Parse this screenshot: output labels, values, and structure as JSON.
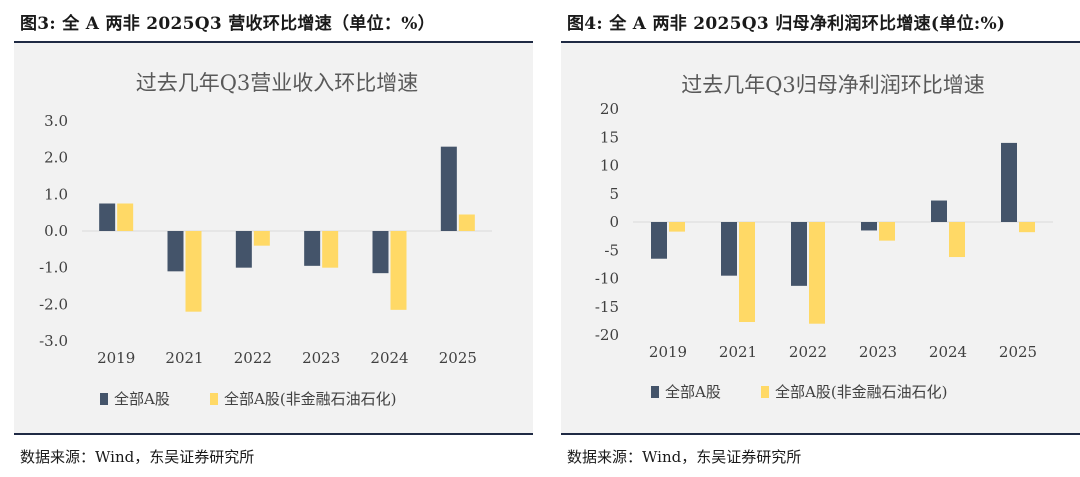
{
  "left": {
    "fig_title": "图3:  全 A 两非  2025Q3 营收环比增速（单位：%）",
    "source": "数据来源：Wind，东吴证券研究所",
    "chart_data": {
      "type": "bar",
      "title": "过去几年Q3营业收入环比增速",
      "categories": [
        "2019",
        "2021",
        "2022",
        "2023",
        "2024",
        "2025"
      ],
      "series": [
        {
          "name": "全部A股",
          "color": "#44546a",
          "values": [
            0.75,
            -1.1,
            -1.0,
            -0.95,
            -1.15,
            2.3
          ]
        },
        {
          "name": "全部A股(非金融石油石化)",
          "color": "#ffd966",
          "values": [
            0.75,
            -2.2,
            -0.4,
            -1.0,
            -2.15,
            0.45
          ]
        }
      ],
      "ylim": [
        -3.0,
        3.0
      ],
      "yticks": [
        3.0,
        2.0,
        1.0,
        0.0,
        -1.0,
        -2.0,
        -3.0
      ],
      "ytick_labels": [
        "3.0",
        "2.0",
        "1.0",
        "0.0",
        "-1.0",
        "-2.0",
        "-3.0"
      ],
      "legend_position": "bottom-left",
      "grid": false
    }
  },
  "right": {
    "fig_title": "图4:  全 A 两非  2025Q3 归母净利润环比增速(单位:%)",
    "source": "数据来源：Wind，东吴证券研究所",
    "chart_data": {
      "type": "bar",
      "title": "过去几年Q3归母净利润环比增速",
      "categories": [
        "2019",
        "2021",
        "2022",
        "2023",
        "2024",
        "2025"
      ],
      "series": [
        {
          "name": "全部A股",
          "color": "#44546a",
          "values": [
            -6.5,
            -9.5,
            -11.3,
            -1.5,
            3.8,
            14.0
          ]
        },
        {
          "name": "全部A股(非金融石油石化)",
          "color": "#ffd966",
          "values": [
            -1.7,
            -17.7,
            -18.0,
            -3.3,
            -6.2,
            -1.8
          ]
        }
      ],
      "ylim": [
        -20,
        20
      ],
      "yticks": [
        20,
        15,
        10,
        5,
        0,
        -5,
        -10,
        -15,
        -20
      ],
      "ytick_labels": [
        "20",
        "15",
        "10",
        "5",
        "0",
        "-5",
        "-10",
        "-15",
        "-20"
      ],
      "legend_position": "bottom-left",
      "grid": false
    }
  }
}
